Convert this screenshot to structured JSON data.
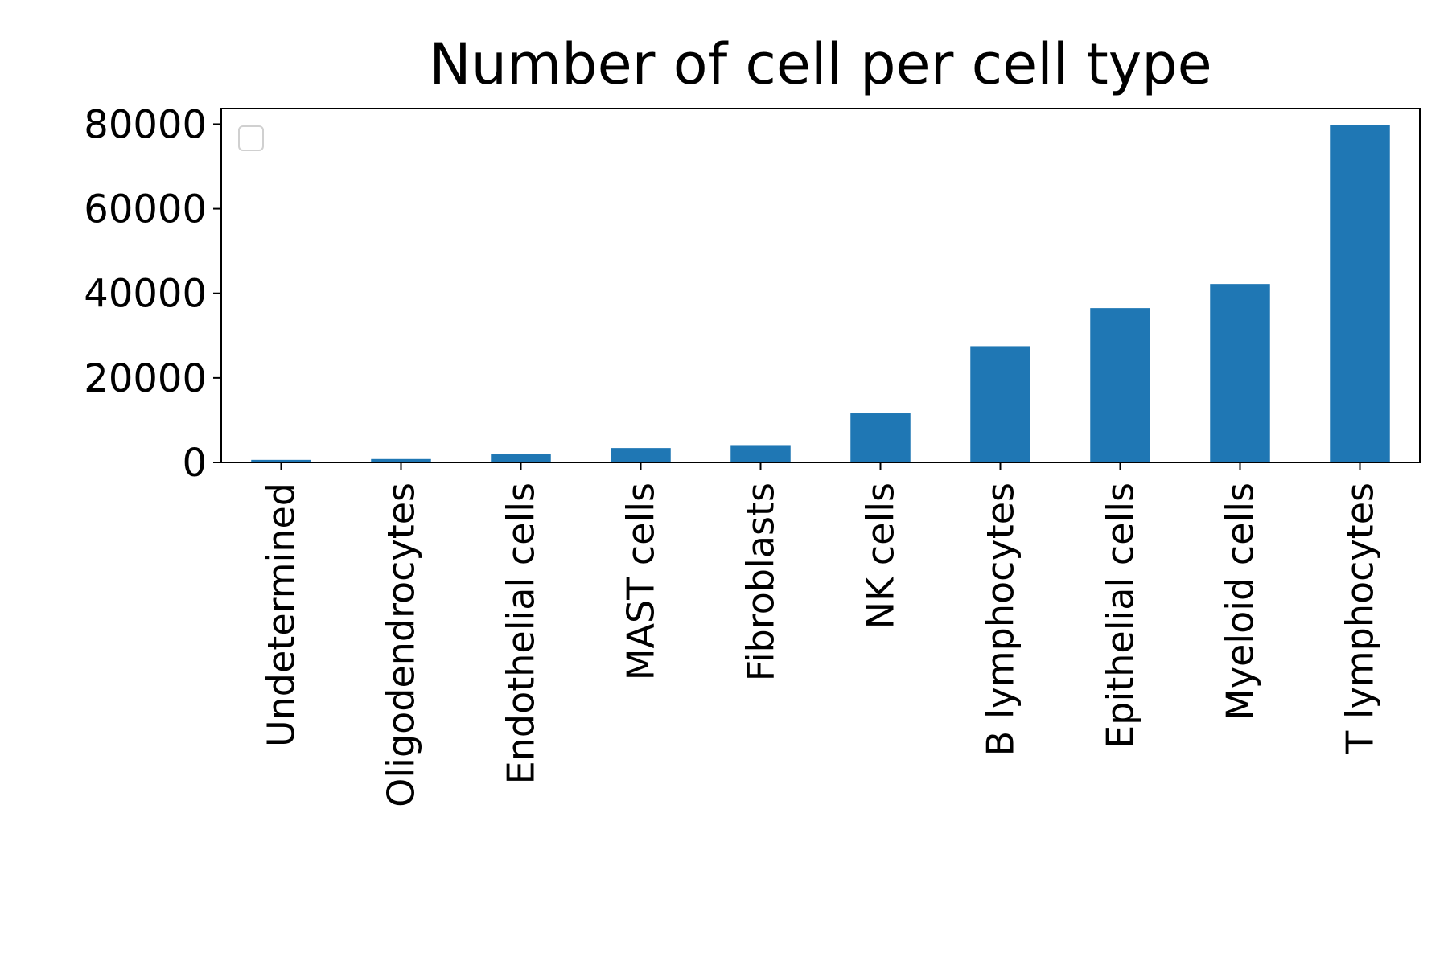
{
  "chart_data": {
    "type": "bar",
    "title": "Number of cell per cell type",
    "xlabel": "",
    "ylabel": "",
    "categories": [
      "Undetermined",
      "Oligodendrocytes",
      "Endothelial cells",
      "MAST cells",
      "Fibroblasts",
      "NK cells",
      "B lymphocytes",
      "Epithelial cells",
      "Myeloid cells",
      "T lymphocytes"
    ],
    "values": [
      600,
      800,
      1900,
      3400,
      4100,
      11600,
      27500,
      36500,
      42200,
      79800
    ],
    "ylim": [
      0,
      83700
    ],
    "yticks": [
      0,
      20000,
      40000,
      60000,
      80000
    ],
    "ytick_labels": [
      "0",
      "20000",
      "40000",
      "60000",
      "80000"
    ],
    "grid": false,
    "legend": {
      "placement": "upper-left",
      "entries": []
    },
    "colors": {
      "bar": "#1f77b4",
      "axis": "#000000",
      "legend_frame": "#d0d0d0"
    }
  }
}
